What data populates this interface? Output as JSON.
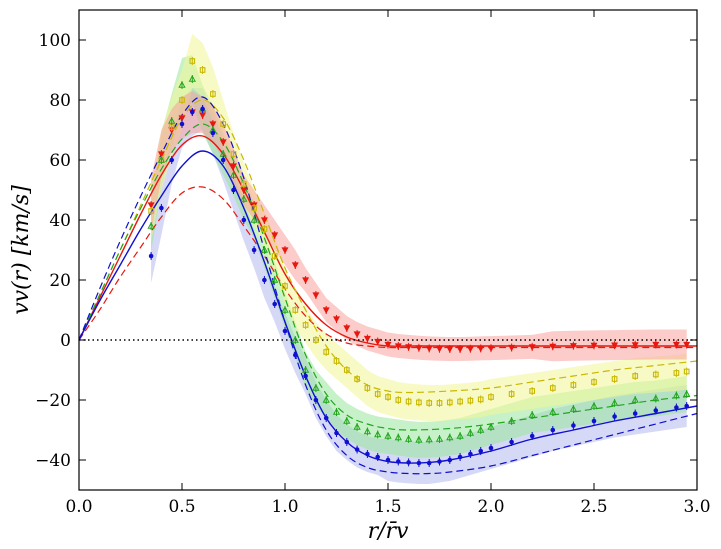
{
  "chart_data": {
    "type": "line",
    "title": "",
    "xlabel": "r/r̄v",
    "ylabel": "vv(r) [km/s]",
    "xlim": [
      0.0,
      3.0
    ],
    "ylim": [
      -50,
      110
    ],
    "xticks": [
      0.0,
      0.5,
      1.0,
      1.5,
      2.0,
      2.5,
      3.0
    ],
    "yticks": [
      -40,
      -20,
      0,
      20,
      40,
      60,
      80,
      100
    ],
    "xtick_labels": [
      "0.0",
      "0.5",
      "1.0",
      "1.5",
      "2.0",
      "2.5",
      "3.0"
    ],
    "ytick_labels": [
      "−40",
      "−20",
      "0",
      "20",
      "40",
      "60",
      "80",
      "100"
    ],
    "series": [
      {
        "name": "red",
        "color": "#e8170f",
        "band_color": "#f7a29c",
        "marker": "triangle-down",
        "x": [
          0.35,
          0.4,
          0.45,
          0.5,
          0.55,
          0.6,
          0.65,
          0.7,
          0.75,
          0.8,
          0.85,
          0.9,
          0.95,
          1.0,
          1.05,
          1.1,
          1.15,
          1.2,
          1.25,
          1.3,
          1.35,
          1.4,
          1.45,
          1.5,
          1.55,
          1.6,
          1.65,
          1.7,
          1.75,
          1.8,
          1.85,
          1.9,
          1.95,
          2.0,
          2.1,
          2.2,
          2.3,
          2.4,
          2.5,
          2.6,
          2.7,
          2.8,
          2.9,
          2.95
        ],
        "y": [
          45,
          62,
          70,
          74,
          76,
          75,
          72,
          66,
          58,
          50,
          45,
          40,
          35,
          30,
          25,
          20,
          15,
          10,
          7,
          4,
          2,
          0.5,
          -0.5,
          -1.5,
          -2.0,
          -2.3,
          -2.6,
          -2.8,
          -2.9,
          -3.0,
          -3.0,
          -2.9,
          -2.8,
          -2.7,
          -2.5,
          -2.3,
          -2.1,
          -1.9,
          -1.8,
          -1.7,
          -1.6,
          -1.5,
          -1.5,
          -1.5
        ],
        "err": [
          9,
          8,
          7,
          7,
          7,
          6,
          6,
          6,
          6,
          5,
          5,
          5,
          5,
          5,
          5,
          4,
          4,
          4,
          4,
          4,
          4,
          4,
          4,
          4,
          4,
          4,
          4,
          4,
          4,
          4,
          4,
          4,
          4,
          4,
          4,
          4,
          5,
          5,
          5,
          5,
          5,
          5,
          5,
          5
        ],
        "model_solid_x": [
          0,
          0.1,
          0.2,
          0.3,
          0.4,
          0.5,
          0.6,
          0.7,
          0.8,
          0.9,
          1.0,
          1.1,
          1.2,
          1.3,
          1.4,
          1.5,
          1.6,
          1.8,
          2.0,
          2.5,
          3.0
        ],
        "model_solid_y": [
          0,
          14,
          28,
          42,
          55,
          65,
          68,
          62,
          50,
          36,
          22,
          12,
          5,
          1,
          -1,
          -2,
          -2,
          -2,
          -2,
          -2,
          -2
        ],
        "model_dashed_x": [
          0,
          0.1,
          0.2,
          0.3,
          0.4,
          0.5,
          0.6,
          0.7,
          0.8,
          0.9,
          1.0,
          1.1,
          1.2,
          1.3,
          1.4,
          1.5,
          1.6,
          1.8,
          2.0,
          2.5,
          3.0
        ],
        "model_dashed_y": [
          0,
          10,
          21,
          31,
          41,
          49,
          51,
          47,
          38,
          28,
          17,
          8,
          2,
          -1,
          -2,
          -2.5,
          -2.5,
          -2.5,
          -2.5,
          -2.5,
          -2.5
        ]
      },
      {
        "name": "yellow",
        "color": "#c9b800",
        "band_color": "#f2f596",
        "marker": "square",
        "x": [
          0.35,
          0.4,
          0.45,
          0.5,
          0.55,
          0.6,
          0.65,
          0.7,
          0.75,
          0.8,
          0.85,
          0.9,
          0.95,
          1.0,
          1.05,
          1.1,
          1.15,
          1.2,
          1.25,
          1.3,
          1.35,
          1.4,
          1.45,
          1.5,
          1.55,
          1.6,
          1.65,
          1.7,
          1.75,
          1.8,
          1.85,
          1.9,
          1.95,
          2.0,
          2.1,
          2.2,
          2.3,
          2.4,
          2.5,
          2.6,
          2.7,
          2.8,
          2.9,
          2.95
        ],
        "y": [
          43,
          60,
          71,
          80,
          93,
          90,
          82,
          72,
          62,
          52,
          44,
          37,
          28,
          18,
          10,
          5,
          0,
          -4,
          -7,
          -10,
          -13,
          -16,
          -18,
          -19,
          -20,
          -20.5,
          -20.8,
          -21,
          -21,
          -20.8,
          -20.5,
          -20.2,
          -19.8,
          -19,
          -18,
          -17,
          -16,
          -15,
          -14,
          -13,
          -12,
          -11.5,
          -11,
          -10.5
        ],
        "err": [
          10,
          10,
          10,
          10,
          9,
          9,
          9,
          8,
          7,
          7,
          6,
          6,
          6,
          6,
          6,
          6,
          6,
          6,
          6,
          6,
          6,
          6,
          6,
          6,
          6,
          6,
          6,
          6,
          6,
          6,
          6,
          6,
          6,
          6,
          6,
          6,
          6,
          6,
          6,
          6,
          6,
          6,
          6,
          6
        ],
        "model_solid_x": [],
        "model_solid_y": [],
        "model_dashed_x": [
          0,
          0.1,
          0.2,
          0.3,
          0.4,
          0.5,
          0.6,
          0.7,
          0.8,
          0.9,
          1.0,
          1.1,
          1.2,
          1.3,
          1.4,
          1.5,
          1.6,
          1.8,
          2.0,
          2.2,
          2.4,
          2.6,
          2.8,
          3.0
        ],
        "model_dashed_y": [
          0,
          15,
          30,
          45,
          60,
          74,
          80,
          74,
          60,
          42,
          24,
          10,
          -2,
          -10,
          -15,
          -17,
          -17.5,
          -17,
          -16,
          -14,
          -12,
          -10,
          -8.5,
          -7
        ]
      },
      {
        "name": "green",
        "color": "#22a51f",
        "band_color": "#99e59a",
        "marker": "triangle-up",
        "x": [
          0.35,
          0.4,
          0.45,
          0.5,
          0.55,
          0.6,
          0.65,
          0.7,
          0.75,
          0.8,
          0.85,
          0.9,
          0.95,
          1.0,
          1.05,
          1.1,
          1.15,
          1.2,
          1.25,
          1.3,
          1.35,
          1.4,
          1.45,
          1.5,
          1.55,
          1.6,
          1.65,
          1.7,
          1.75,
          1.8,
          1.85,
          1.9,
          1.95,
          2.0,
          2.1,
          2.2,
          2.3,
          2.4,
          2.5,
          2.6,
          2.7,
          2.8,
          2.9,
          2.95
        ],
        "y": [
          38,
          60,
          73,
          85,
          87,
          77,
          70,
          62,
          55,
          47,
          40,
          30,
          20,
          10,
          0,
          -10,
          -16,
          -20,
          -24,
          -27,
          -29,
          -30.5,
          -31.5,
          -32,
          -32.5,
          -33,
          -33.3,
          -33.2,
          -33,
          -32.5,
          -32,
          -31,
          -30,
          -29,
          -27,
          -25,
          -24,
          -23,
          -22,
          -21,
          -20,
          -19.5,
          -18.5,
          -18
        ],
        "err": [
          9,
          9,
          9,
          9,
          8,
          8,
          8,
          7,
          7,
          7,
          6,
          6,
          6,
          6,
          6,
          6,
          6,
          6,
          6,
          6,
          6,
          6,
          6,
          6,
          6,
          6,
          6,
          6,
          6,
          6,
          6,
          6,
          6,
          6,
          6,
          6,
          6,
          6,
          6,
          6,
          6,
          6,
          6,
          6
        ],
        "model_solid_x": [],
        "model_solid_y": [],
        "model_dashed_x": [
          0,
          0.1,
          0.2,
          0.3,
          0.4,
          0.5,
          0.6,
          0.7,
          0.8,
          0.9,
          1.0,
          1.1,
          1.2,
          1.3,
          1.4,
          1.5,
          1.6,
          1.8,
          2.0,
          2.2,
          2.4,
          2.6,
          2.8,
          3.0
        ],
        "model_dashed_y": [
          0,
          15,
          30,
          44,
          57,
          67,
          72,
          66,
          52,
          34,
          14,
          -5,
          -18,
          -25,
          -28,
          -29.5,
          -30,
          -29.5,
          -28,
          -26,
          -24,
          -22,
          -20,
          -18.5
        ]
      },
      {
        "name": "blue",
        "color": "#1010d0",
        "band_color": "#b5b9ef",
        "marker": "circle",
        "x": [
          0.35,
          0.4,
          0.45,
          0.5,
          0.55,
          0.6,
          0.65,
          0.7,
          0.75,
          0.8,
          0.85,
          0.9,
          0.95,
          1.0,
          1.05,
          1.1,
          1.15,
          1.2,
          1.25,
          1.3,
          1.35,
          1.4,
          1.45,
          1.5,
          1.55,
          1.6,
          1.65,
          1.7,
          1.75,
          1.8,
          1.85,
          1.9,
          1.95,
          2.0,
          2.1,
          2.2,
          2.3,
          2.4,
          2.5,
          2.6,
          2.7,
          2.8,
          2.9,
          2.95
        ],
        "y": [
          28,
          44,
          60,
          72,
          76,
          77,
          69,
          60,
          50,
          40,
          30,
          20,
          12,
          3,
          -5,
          -12,
          -20,
          -26,
          -31,
          -34,
          -36.5,
          -38,
          -39,
          -40,
          -40.5,
          -40.8,
          -41,
          -41,
          -40.5,
          -40,
          -39,
          -38,
          -37,
          -36,
          -34,
          -32,
          -30,
          -28.5,
          -27,
          -25.5,
          -24.5,
          -23.5,
          -22.5,
          -22
        ],
        "err": [
          9,
          9,
          8,
          8,
          8,
          7,
          7,
          7,
          7,
          7,
          6,
          6,
          6,
          6,
          6,
          6,
          6,
          6,
          6,
          6,
          6,
          6,
          6,
          7,
          7,
          7,
          7,
          7,
          7,
          7,
          7,
          7,
          7,
          7,
          7,
          7,
          7,
          7,
          7,
          7,
          7,
          7,
          7,
          7
        ],
        "model_solid_x": [
          0,
          0.1,
          0.2,
          0.3,
          0.4,
          0.5,
          0.6,
          0.7,
          0.8,
          0.9,
          1.0,
          1.1,
          1.2,
          1.3,
          1.4,
          1.5,
          1.6,
          1.7,
          1.8,
          2.0,
          2.2,
          2.4,
          2.6,
          2.8,
          3.0
        ],
        "model_solid_y": [
          0,
          13,
          25,
          37,
          48,
          58,
          63,
          58,
          44,
          26,
          6,
          -12,
          -26,
          -34,
          -38.5,
          -40.5,
          -41,
          -40.8,
          -40,
          -37,
          -33,
          -30,
          -27,
          -24.5,
          -22
        ],
        "model_dashed_x": [
          0,
          0.1,
          0.2,
          0.3,
          0.4,
          0.5,
          0.6,
          0.7,
          0.8,
          0.9,
          1.0,
          1.1,
          1.2,
          1.3,
          1.4,
          1.5,
          1.6,
          1.7,
          1.8,
          2.0,
          2.2,
          2.4,
          2.6,
          2.8,
          3.0
        ],
        "model_dashed_y": [
          0,
          17,
          33,
          48,
          62,
          75,
          81,
          72,
          54,
          30,
          6,
          -15,
          -30,
          -38.5,
          -42.5,
          -44,
          -44.5,
          -44.5,
          -44,
          -42,
          -38.5,
          -35,
          -31.5,
          -28,
          -24.5
        ]
      }
    ]
  }
}
